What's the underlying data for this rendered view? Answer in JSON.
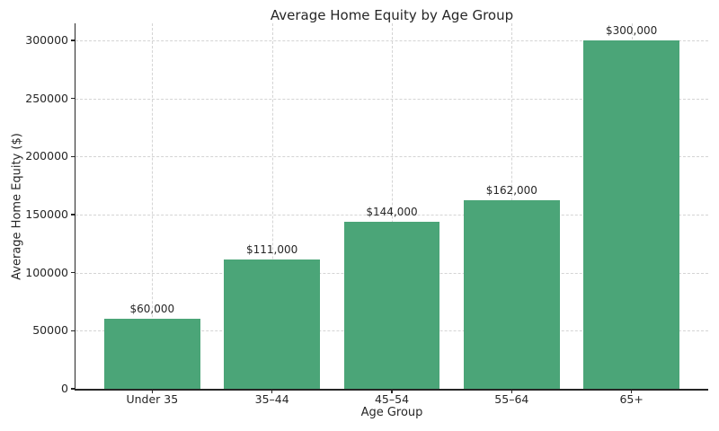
{
  "chart_data": {
    "type": "bar",
    "title": "Average Home Equity by Age Group",
    "xlabel": "Age Group",
    "ylabel": "Average Home Equity ($)",
    "categories": [
      "Under 35",
      "35–44",
      "45–54",
      "55–64",
      "65+"
    ],
    "values": [
      60000,
      111000,
      144000,
      162000,
      300000
    ],
    "value_labels": [
      "$60,000",
      "$111,000",
      "$144,000",
      "$162,000",
      "$300,000"
    ],
    "yticks": [
      0,
      50000,
      100000,
      150000,
      200000,
      250000,
      300000
    ],
    "ytick_labels": [
      "0",
      "50000",
      "100000",
      "150000",
      "200000",
      "250000",
      "300000"
    ],
    "ylim": [
      0,
      315000
    ],
    "grid": "both",
    "grid_style": "dashed",
    "legend": "none",
    "bar_color": "#4ba578",
    "text_color": "#262626",
    "grid_color": "#d4d4d4",
    "spine_color": "#262626",
    "background_color": "#ffffff"
  }
}
